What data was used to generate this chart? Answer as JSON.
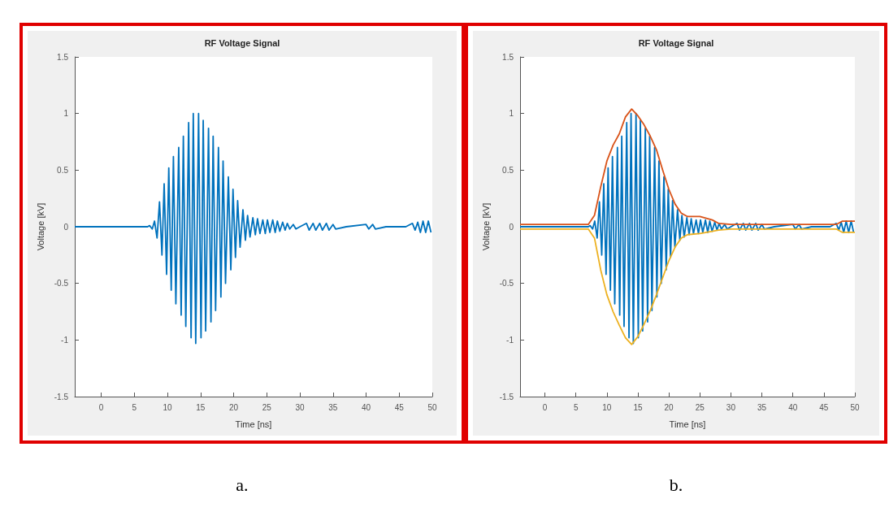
{
  "chart_data": [
    {
      "type": "line",
      "title": "RF Voltage Signal",
      "xlabel": "Time [ns]",
      "ylabel": "Voltage [kV]",
      "xlim": [
        -4,
        50
      ],
      "xticks": [
        0,
        5,
        10,
        15,
        20,
        25,
        30,
        35,
        40,
        45,
        50
      ],
      "ylim": [
        -1.5,
        1.5
      ],
      "yticks": [
        -1.5,
        -1,
        -0.5,
        0,
        0.5,
        1,
        1.5
      ],
      "grid": false,
      "annotations": [
        "a."
      ],
      "series": [
        {
          "color": "#0072bd",
          "x": [
            -4,
            7,
            7.3,
            7.7,
            8.05,
            8.43,
            8.8,
            9.17,
            9.5,
            9.87,
            10.2,
            10.57,
            10.9,
            11.27,
            11.7,
            12.07,
            12.4,
            12.77,
            13.2,
            13.57,
            13.9,
            14.27,
            14.7,
            15.07,
            15.4,
            15.77,
            16.2,
            16.57,
            16.9,
            17.27,
            17.7,
            18.07,
            18.4,
            18.77,
            19.2,
            19.57,
            19.9,
            20.27,
            20.6,
            20.97,
            21.4,
            21.77,
            22.1,
            22.47,
            22.9,
            23.27,
            23.6,
            23.97,
            24.4,
            24.77,
            25.1,
            25.47,
            25.9,
            26.27,
            26.6,
            26.97,
            27.4,
            27.77,
            28.1,
            28.47,
            29,
            29.4,
            30,
            31,
            31.4,
            32,
            32.4,
            33,
            33.4,
            34,
            34.4,
            35,
            35.4,
            37,
            40,
            40.4,
            41,
            41.4,
            43,
            46,
            47,
            47.4,
            47.8,
            48.2,
            48.6,
            49,
            49.4,
            49.8
          ],
          "values": [
            0,
            0,
            0.01,
            -0.02,
            0.05,
            -0.1,
            0.22,
            -0.25,
            0.38,
            -0.42,
            0.52,
            -0.56,
            0.62,
            -0.68,
            0.7,
            -0.78,
            0.8,
            -0.88,
            0.92,
            -0.98,
            1,
            -1.03,
            1,
            -0.98,
            0.94,
            -0.92,
            0.87,
            -0.84,
            0.8,
            -0.74,
            0.7,
            -0.62,
            0.58,
            -0.5,
            0.44,
            -0.38,
            0.33,
            -0.27,
            0.23,
            -0.18,
            0.15,
            -0.12,
            0.1,
            -0.09,
            0.08,
            -0.07,
            0.07,
            -0.06,
            0.06,
            -0.06,
            0.06,
            -0.05,
            0.06,
            -0.05,
            0.05,
            -0.04,
            0.04,
            -0.03,
            0.03,
            -0.02,
            0.02,
            -0.02,
            0,
            0.03,
            -0.03,
            0.03,
            -0.03,
            0.03,
            -0.03,
            0.03,
            -0.03,
            0.02,
            -0.02,
            0,
            0.02,
            -0.02,
            0.02,
            -0.02,
            0,
            0,
            0.03,
            -0.03,
            0.04,
            -0.05,
            0.05,
            -0.05,
            0.05,
            -0.05
          ]
        }
      ]
    },
    {
      "type": "line",
      "title": "RF Voltage Signal",
      "xlabel": "Time [ns]",
      "ylabel": "Voltage [kV]",
      "xlim": [
        -4,
        50
      ],
      "xticks": [
        0,
        5,
        10,
        15,
        20,
        25,
        30,
        35,
        40,
        45,
        50
      ],
      "ylim": [
        -1.5,
        1.5
      ],
      "yticks": [
        -1.5,
        -1,
        -0.5,
        0,
        0.5,
        1,
        1.5
      ],
      "grid": false,
      "annotations": [
        "b."
      ],
      "series": [
        {
          "color": "#0072bd",
          "x": [
            -4,
            7,
            7.3,
            7.7,
            8.05,
            8.43,
            8.8,
            9.17,
            9.5,
            9.87,
            10.2,
            10.57,
            10.9,
            11.27,
            11.7,
            12.07,
            12.4,
            12.77,
            13.2,
            13.57,
            13.9,
            14.27,
            14.7,
            15.07,
            15.4,
            15.77,
            16.2,
            16.57,
            16.9,
            17.27,
            17.7,
            18.07,
            18.4,
            18.77,
            19.2,
            19.57,
            19.9,
            20.27,
            20.6,
            20.97,
            21.4,
            21.77,
            22.1,
            22.47,
            22.9,
            23.27,
            23.6,
            23.97,
            24.4,
            24.77,
            25.1,
            25.47,
            25.9,
            26.27,
            26.6,
            26.97,
            27.4,
            27.77,
            28.1,
            28.47,
            29,
            29.4,
            30,
            31,
            31.4,
            32,
            32.4,
            33,
            33.4,
            34,
            34.4,
            35,
            35.4,
            37,
            40,
            40.4,
            41,
            41.4,
            43,
            46,
            47,
            47.4,
            47.8,
            48.2,
            48.6,
            49,
            49.4,
            49.8
          ],
          "values": [
            0,
            0,
            0.01,
            -0.02,
            0.05,
            -0.1,
            0.22,
            -0.25,
            0.38,
            -0.42,
            0.52,
            -0.56,
            0.62,
            -0.68,
            0.7,
            -0.78,
            0.8,
            -0.88,
            0.92,
            -0.98,
            1,
            -1.03,
            1,
            -0.98,
            0.94,
            -0.92,
            0.87,
            -0.84,
            0.8,
            -0.74,
            0.7,
            -0.62,
            0.58,
            -0.5,
            0.44,
            -0.38,
            0.33,
            -0.27,
            0.23,
            -0.18,
            0.15,
            -0.12,
            0.1,
            -0.09,
            0.08,
            -0.07,
            0.07,
            -0.06,
            0.06,
            -0.06,
            0.06,
            -0.05,
            0.06,
            -0.05,
            0.05,
            -0.04,
            0.04,
            -0.03,
            0.03,
            -0.02,
            0.02,
            -0.02,
            0,
            0.03,
            -0.03,
            0.03,
            -0.03,
            0.03,
            -0.03,
            0.03,
            -0.03,
            0.02,
            -0.02,
            0,
            0.02,
            -0.02,
            0.02,
            -0.02,
            0,
            0,
            0.03,
            -0.03,
            0.04,
            -0.05,
            0.05,
            -0.05,
            0.05,
            -0.05
          ]
        },
        {
          "color": "#d95319",
          "x": [
            -4,
            7,
            8,
            9,
            10,
            11,
            12,
            13,
            14,
            15,
            16,
            17,
            18,
            19,
            20,
            21,
            22,
            23,
            25,
            27,
            28,
            30,
            47,
            48,
            50
          ],
          "values": [
            0.02,
            0.02,
            0.1,
            0.35,
            0.58,
            0.72,
            0.82,
            0.97,
            1.04,
            0.98,
            0.9,
            0.8,
            0.68,
            0.5,
            0.33,
            0.2,
            0.12,
            0.09,
            0.09,
            0.06,
            0.03,
            0.02,
            0.02,
            0.05,
            0.05
          ]
        },
        {
          "color": "#edb120",
          "x": [
            -4,
            7,
            8,
            9,
            10,
            11,
            12,
            13,
            14,
            15,
            16,
            17,
            18,
            19,
            20,
            21,
            22,
            23,
            25,
            27,
            28,
            30,
            47,
            48,
            50
          ],
          "values": [
            -0.02,
            -0.02,
            -0.1,
            -0.38,
            -0.6,
            -0.75,
            -0.87,
            -0.98,
            -1.04,
            -0.97,
            -0.86,
            -0.74,
            -0.6,
            -0.45,
            -0.3,
            -0.18,
            -0.1,
            -0.07,
            -0.06,
            -0.04,
            -0.03,
            -0.02,
            -0.02,
            -0.05,
            -0.05
          ]
        }
      ]
    }
  ]
}
